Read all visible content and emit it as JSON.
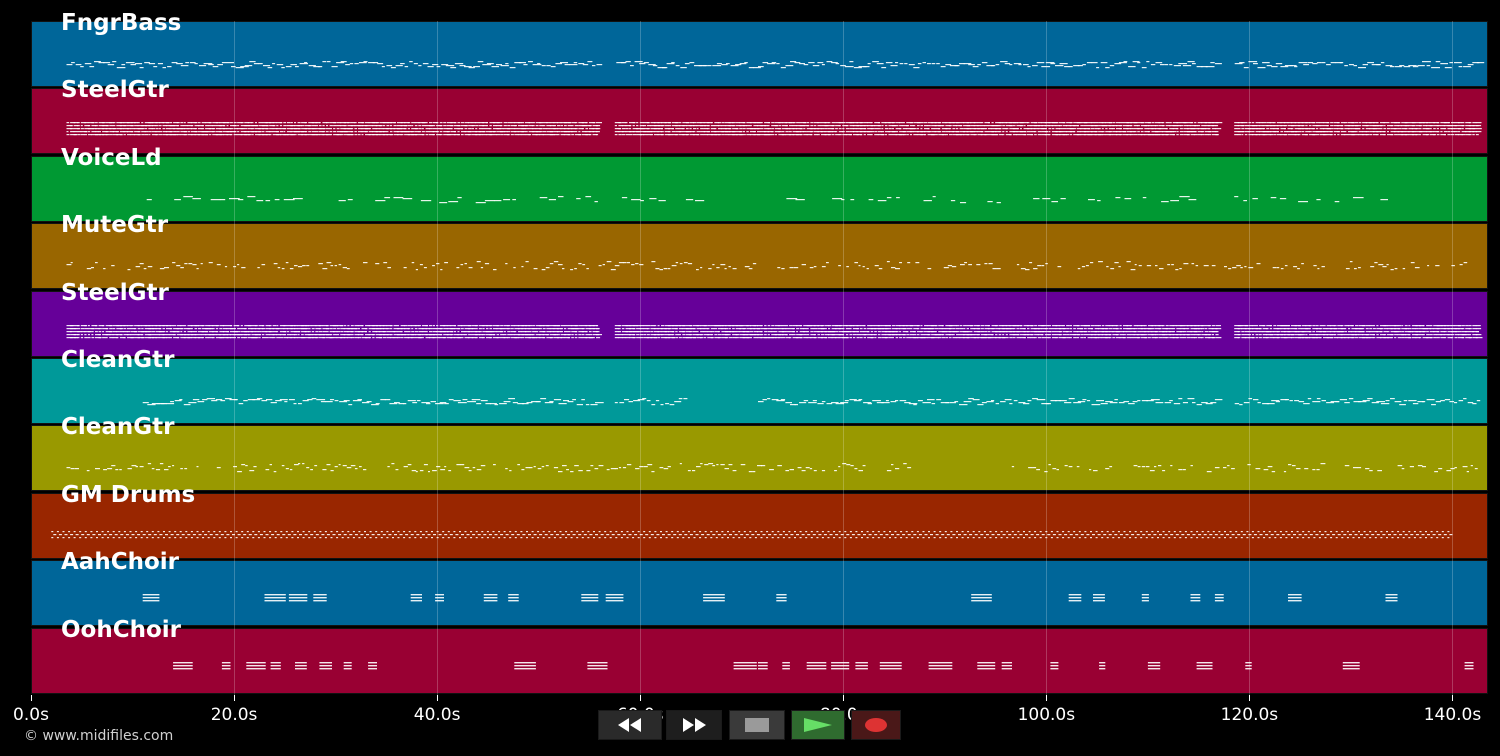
{
  "duration_seconds": 143.5,
  "tracks": [
    {
      "name": "FngrBass",
      "color": "#006699",
      "pattern": "line",
      "start": 3.5,
      "end": 142.5,
      "gaps": [
        [
          55.8,
          57.5
        ],
        [
          116.8,
          118.5
        ]
      ]
    },
    {
      "name": "SteelGtr",
      "color": "#990033",
      "pattern": "dense",
      "start": 3.5,
      "end": 142.5,
      "gaps": [
        [
          55.8,
          57.3
        ],
        [
          116.8,
          118.3
        ]
      ]
    },
    {
      "name": "VoiceLd",
      "color": "#009933",
      "pattern": "sparse",
      "start": 10.5,
      "end": 133.5,
      "gaps": [
        [
          65.5,
          71.5
        ]
      ]
    },
    {
      "name": "MuteGtr",
      "color": "#996600",
      "pattern": "dots",
      "start": 3.5,
      "end": 142.5,
      "gaps": []
    },
    {
      "name": "SteelGtr",
      "color": "#660099",
      "pattern": "dense",
      "start": 3.5,
      "end": 142.5,
      "gaps": [
        [
          55.8,
          57.3
        ],
        [
          116.8,
          118.3
        ]
      ]
    },
    {
      "name": "CleanGtr",
      "color": "#009999",
      "pattern": "line",
      "start": 11,
      "end": 142.5,
      "gaps": [
        [
          55.8,
          57.5
        ],
        [
          64.5,
          71.5
        ],
        [
          116.8,
          118.3
        ]
      ]
    },
    {
      "name": "CleanGtr",
      "color": "#999900",
      "pattern": "dots",
      "start": 3.5,
      "end": 142.5,
      "gaps": [
        [
          86.5,
          96.5
        ]
      ]
    },
    {
      "name": "GM Drums",
      "color": "#992600",
      "pattern": "drums",
      "start": 2,
      "end": 139.5,
      "gaps": []
    },
    {
      "name": "AahChoir",
      "color": "#006699",
      "pattern": "blocks",
      "start": 11,
      "end": 138.5,
      "gaps": []
    },
    {
      "name": "OohChoir",
      "color": "#990033",
      "pattern": "blocks",
      "start": 14,
      "end": 142.5,
      "gaps": []
    }
  ],
  "axis": {
    "ticks": [
      {
        "value": 0,
        "label": "0.0s"
      },
      {
        "value": 20,
        "label": "20.0s"
      },
      {
        "value": 40,
        "label": "40.0s"
      },
      {
        "value": 60,
        "label": "60.0s"
      },
      {
        "value": 80,
        "label": "80.0s"
      },
      {
        "value": 100,
        "label": "100.0s"
      },
      {
        "value": 120,
        "label": "120.0s"
      },
      {
        "value": 140,
        "label": "140.0s"
      }
    ]
  },
  "footer": {
    "copyright": "© www.midifiles.com"
  },
  "transport": {
    "rewind_icon": "rewind-icon",
    "fast_forward_icon": "fast-forward-icon",
    "stop_icon": "stop-icon",
    "play_icon": "play-icon",
    "record_icon": "record-icon"
  }
}
